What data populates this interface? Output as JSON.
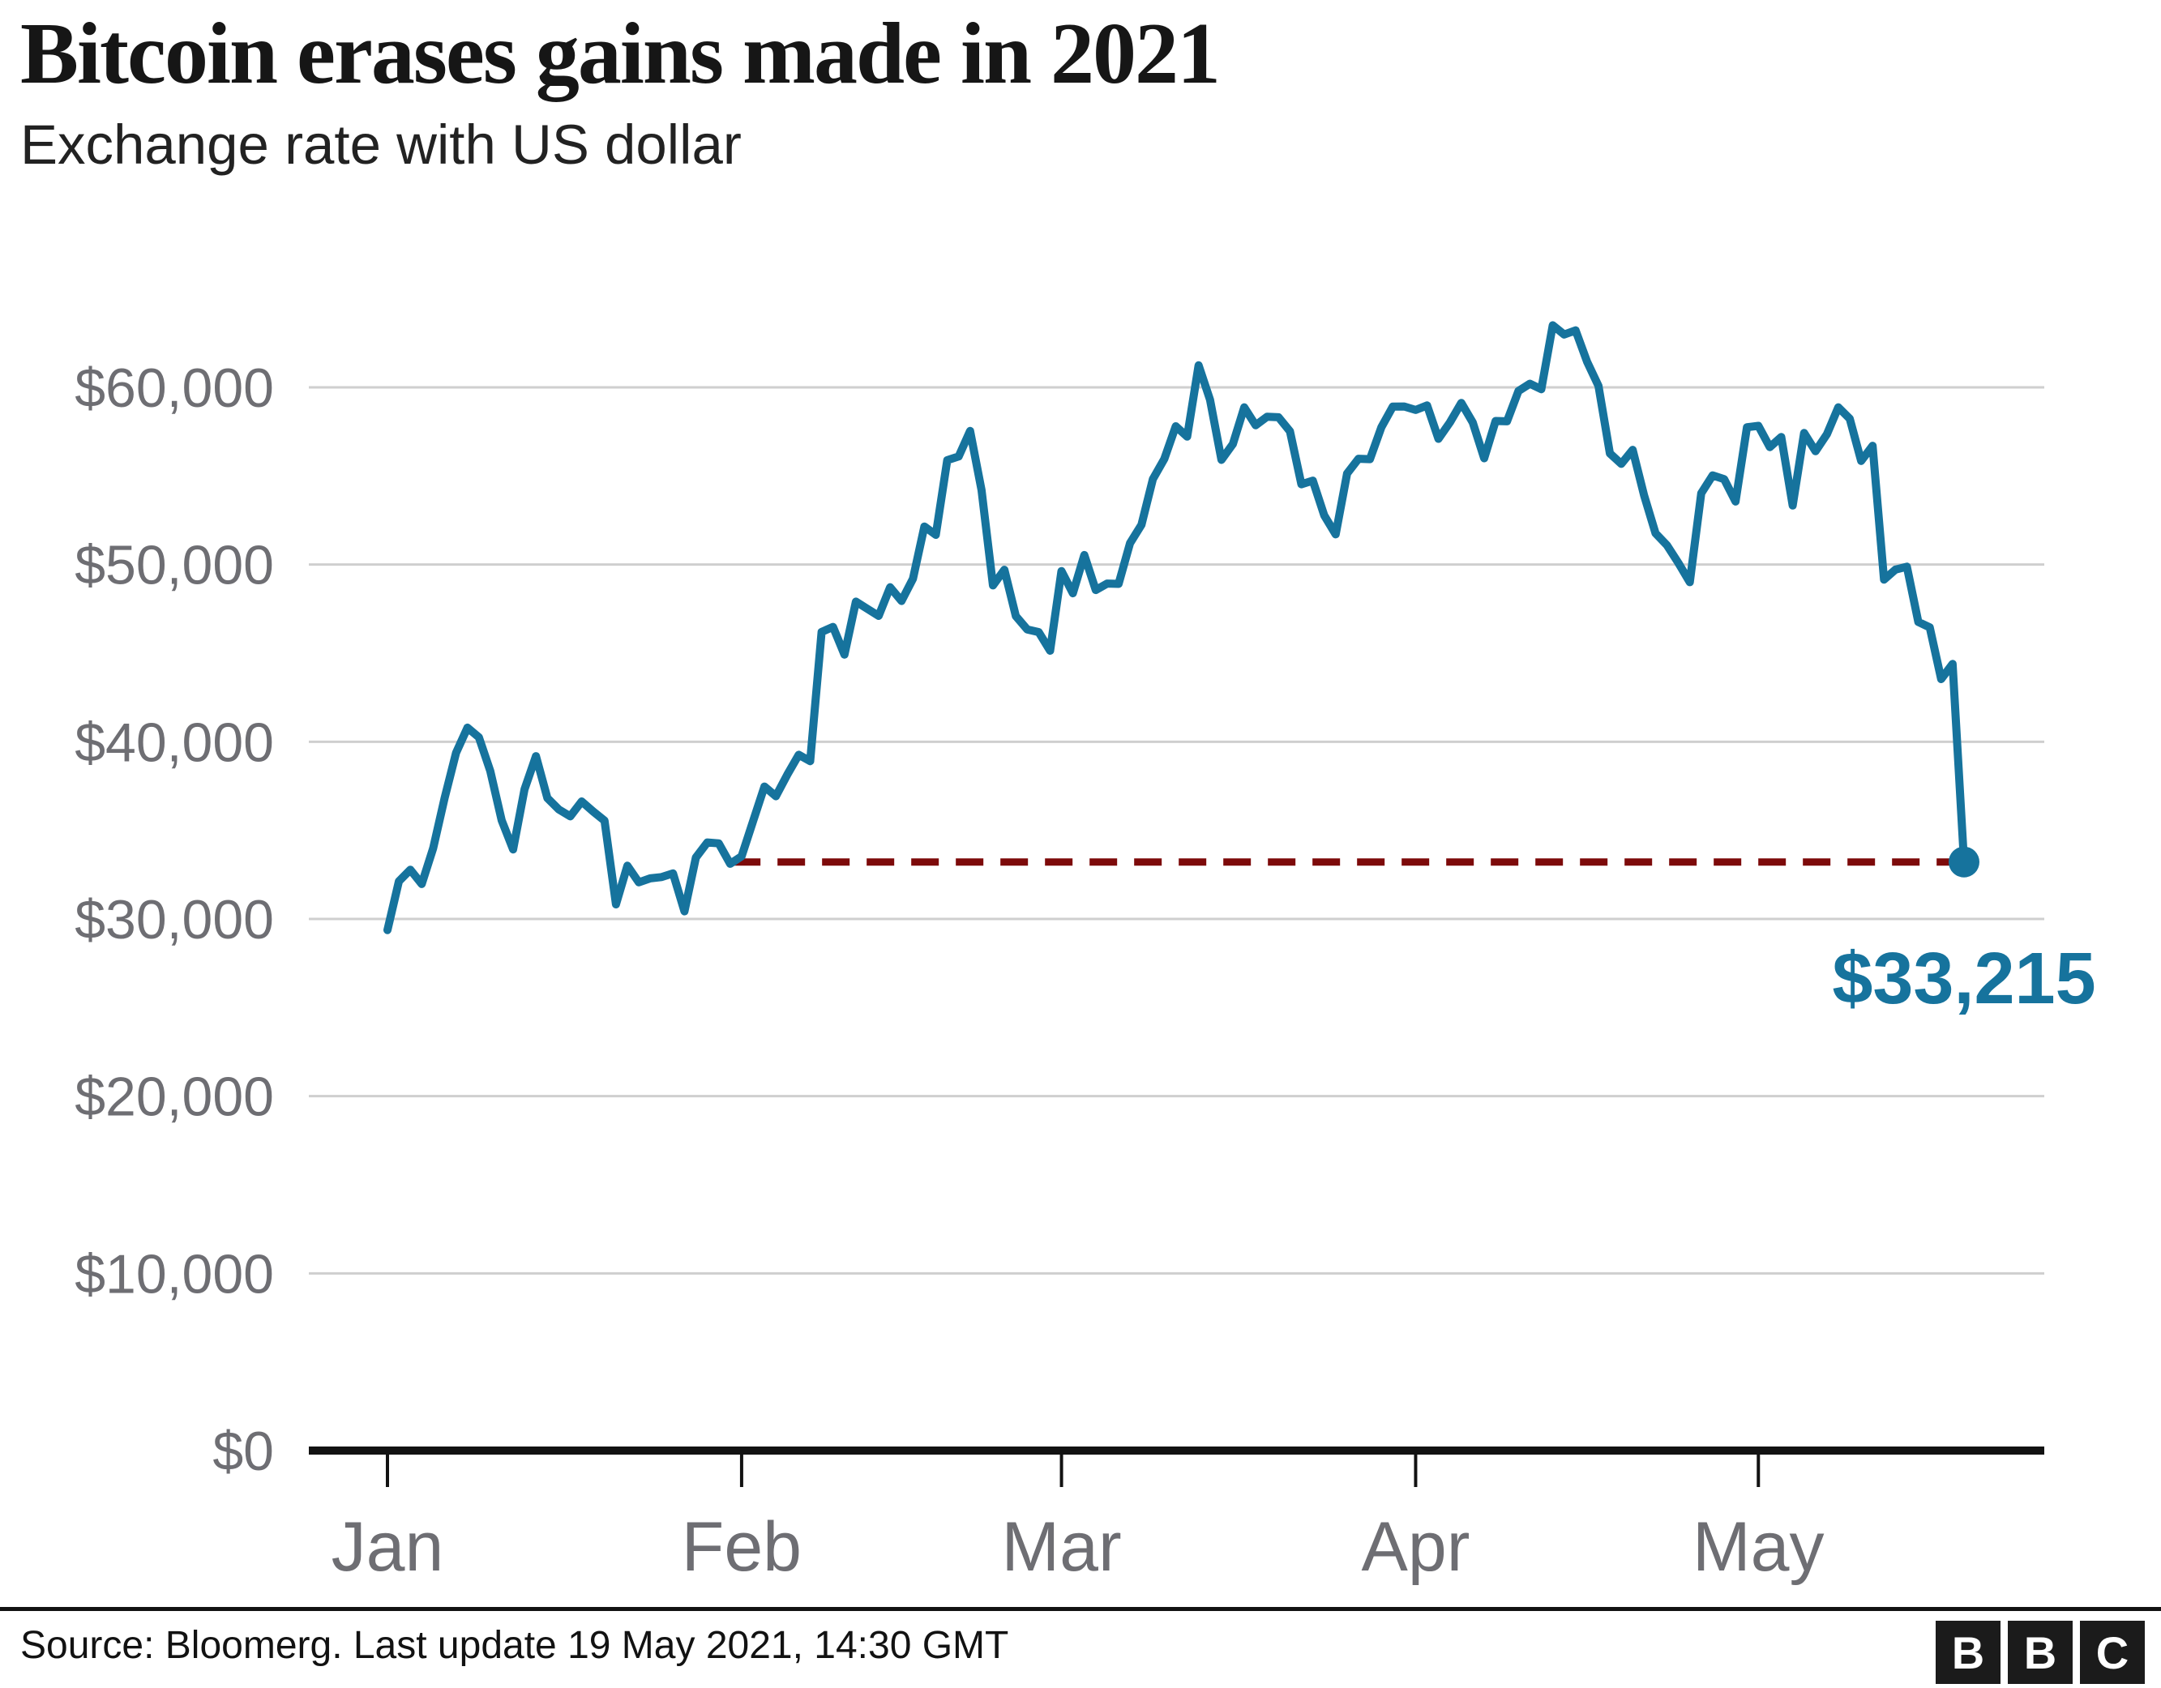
{
  "header": {
    "title": "Bitcoin erases gains made in 2021",
    "subtitle": "Exchange rate with US dollar"
  },
  "footer": {
    "source": "Source: Bloomerg. Last update 19 May 2021, 14:30 GMT",
    "logo_letters": [
      "B",
      "B",
      "C"
    ]
  },
  "annotation": {
    "label": "$33,215",
    "value": 33215
  },
  "colors": {
    "line": "#16739D",
    "dashed_reference": "#7D0A0A",
    "grid": "#CFCFCF",
    "axis": "#121212",
    "tick_label": "#6E6E73",
    "title": "#161616",
    "subtitle": "#222222",
    "source": "#121212",
    "logo_bg": "#1B1B1B",
    "logo_letter": "#FFFFFF",
    "background": "#FFFFFF"
  },
  "chart_data": {
    "type": "line",
    "title": "Bitcoin erases gains made in 2021",
    "subtitle": "Exchange rate with US dollar",
    "unit": "USD",
    "frequency": "daily",
    "start_date": "2021-01-01",
    "end_date": "2021-05-19",
    "grid": true,
    "ylim": [
      0,
      65000
    ],
    "x_ticks": [
      {
        "label": "Jan",
        "day": 0
      },
      {
        "label": "Feb",
        "day": 31
      },
      {
        "label": "Mar",
        "day": 59
      },
      {
        "label": "Apr",
        "day": 90
      },
      {
        "label": "May",
        "day": 120
      }
    ],
    "y_ticks": [
      {
        "label": "$0",
        "value": 0
      },
      {
        "label": "$10,000",
        "value": 10000
      },
      {
        "label": "$20,000",
        "value": 20000
      },
      {
        "label": "$30,000",
        "value": 30000
      },
      {
        "label": "$40,000",
        "value": 40000
      },
      {
        "label": "$50,000",
        "value": 50000
      },
      {
        "label": "$60,000",
        "value": 60000
      }
    ],
    "series": [
      {
        "name": "Bitcoin exchange rate with US dollar",
        "values": [
          29374,
          32127,
          32782,
          31971,
          33992,
          36824,
          39371,
          40797,
          40254,
          38356,
          35566,
          33922,
          37316,
          39187,
          36825,
          36178,
          35791,
          36630,
          36069,
          35547,
          30825,
          33005,
          32067,
          32289,
          32366,
          32569,
          30432,
          33466,
          34316,
          34269,
          33114,
          33537,
          35510,
          37472,
          36926,
          38144,
          39266,
          38903,
          46196,
          46481,
          44918,
          47909,
          47504,
          47105,
          48717,
          47945,
          49199,
          52149,
          51679,
          55888,
          56099,
          57539,
          54207,
          48824,
          49705,
          47093,
          46339,
          46188,
          45137,
          49631,
          48378,
          50538,
          48561,
          48927,
          48912,
          51206,
          52246,
          54824,
          55963,
          57805,
          57221,
          61243,
          59302,
          55907,
          56804,
          58870,
          57858,
          58346,
          58313,
          57523,
          54529,
          54738,
          52774,
          51704,
          55137,
          55973,
          55950,
          57750,
          58917,
          58919,
          58726,
          58981,
          57094,
          58020,
          59123,
          58019,
          56000,
          58102,
          58083,
          59793,
          60204,
          59893,
          63503,
          62980,
          63216,
          61452,
          60087,
          56275,
          55681,
          56473,
          53906,
          51762,
          51093,
          50088,
          49004,
          54021,
          55033,
          54824,
          53555,
          57750,
          57828,
          56631,
          57200,
          53333,
          57424,
          56396,
          57352,
          58877,
          58232,
          55847,
          56704,
          49150,
          49716,
          49880,
          46760,
          46456,
          43537,
          44390,
          33215
        ]
      }
    ],
    "reference_line": {
      "value": 33215,
      "label": "$33,215",
      "style": "dashed"
    },
    "endpoint": {
      "date": "2021-05-19",
      "value": 33215
    }
  }
}
